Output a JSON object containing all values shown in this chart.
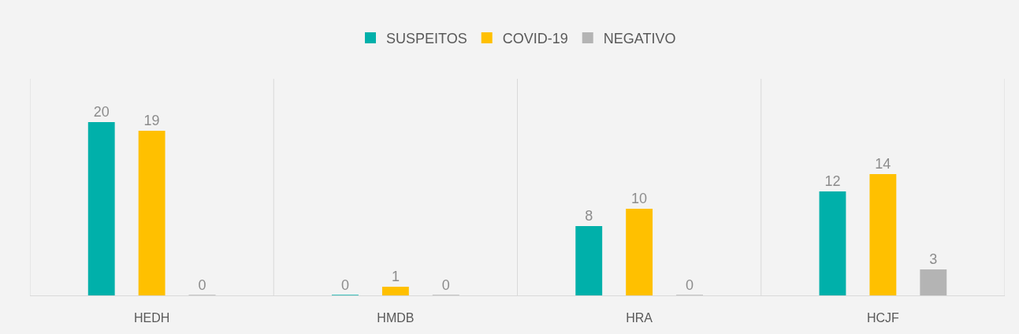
{
  "chart_data": {
    "type": "bar",
    "categories": [
      "HEDH",
      "HMDB",
      "HRA",
      "HCJF"
    ],
    "series": [
      {
        "name": "SUSPEITOS",
        "color": "#00b0aa",
        "values": [
          20,
          0,
          8,
          12
        ]
      },
      {
        "name": "COVID-19",
        "color": "#ffc000",
        "values": [
          19,
          1,
          10,
          14
        ]
      },
      {
        "name": "NEGATIVO",
        "color": "#b4b4b4",
        "values": [
          0,
          0,
          0,
          3
        ]
      }
    ],
    "data_labels": true,
    "grid": "x",
    "legend": "top"
  }
}
